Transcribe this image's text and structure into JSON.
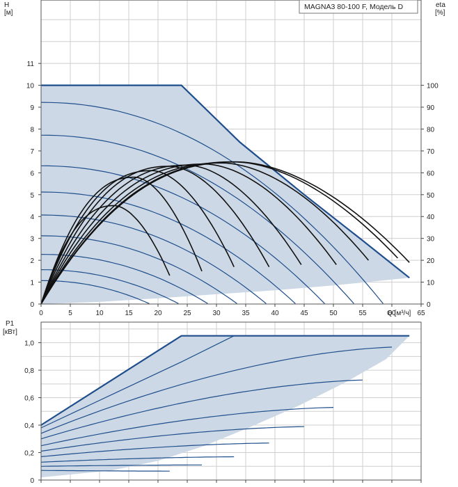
{
  "chart_data": [
    {
      "type": "line",
      "title": "MAGNA3 80-100 F, Модель D",
      "ylabel": "H",
      "ylabel_unit": "[м]",
      "y2label": "eta",
      "y2label_unit": "[%]",
      "xlabel": "Q [м³/ч]",
      "xlim": [
        0,
        65
      ],
      "ylim": [
        0,
        13.9
      ],
      "y2lim": [
        0,
        139
      ],
      "x_ticks": [
        "0",
        "5",
        "10",
        "15",
        "20",
        "25",
        "30",
        "35",
        "40",
        "45",
        "50",
        "55",
        "60",
        "65"
      ],
      "y_ticks": [
        "0",
        "1",
        "2",
        "3",
        "4",
        "5",
        "6",
        "7",
        "8",
        "9",
        "10",
        "11"
      ],
      "y2_ticks": [
        "0",
        "10",
        "20",
        "30",
        "40",
        "50",
        "60",
        "70",
        "80",
        "90",
        "100"
      ],
      "grid": true,
      "colors": {
        "envelope": "#1f4e8c",
        "curve": "#1f4e8c",
        "eta": "#111111",
        "fill": "#ccd8e5"
      },
      "envelope": [
        [
          0,
          10
        ],
        [
          24,
          10
        ],
        [
          34,
          7.4
        ],
        [
          45,
          5.0
        ],
        [
          55,
          2.9
        ],
        [
          63,
          1.2
        ],
        [
          50,
          0.85
        ],
        [
          40,
          0.63
        ],
        [
          30,
          0.45
        ],
        [
          20,
          0.26
        ],
        [
          10,
          0.1
        ],
        [
          0,
          0
        ]
      ],
      "head_curves": [
        {
          "h0": 9.2,
          "qmax": 58.5
        },
        {
          "h0": 7.7,
          "qmax": 53.5
        },
        {
          "h0": 6.3,
          "qmax": 48.5
        },
        {
          "h0": 5.1,
          "qmax": 43.5
        },
        {
          "h0": 4.05,
          "qmax": 38.5
        },
        {
          "h0": 3.1,
          "qmax": 33.5
        },
        {
          "h0": 2.25,
          "qmax": 28.5
        },
        {
          "h0": 1.55,
          "qmax": 23.5
        },
        {
          "h0": 1.05,
          "qmax": 18.5
        }
      ],
      "eta_curves": [
        {
          "q_end": 63,
          "q_peak": 33.5,
          "peak": 65,
          "end": 19
        },
        {
          "q_end": 61,
          "q_peak": 33,
          "peak": 65,
          "end": 21
        },
        {
          "q_end": 56,
          "q_peak": 31,
          "peak": 64.5,
          "end": 20
        },
        {
          "q_end": 50.5,
          "q_peak": 28,
          "peak": 64,
          "end": 18
        },
        {
          "q_end": 44.5,
          "q_peak": 25,
          "peak": 63.5,
          "end": 18
        },
        {
          "q_end": 39,
          "q_peak": 22,
          "peak": 63,
          "end": 17
        },
        {
          "q_end": 33,
          "q_peak": 19,
          "peak": 61,
          "end": 17
        },
        {
          "q_end": 27.5,
          "q_peak": 16,
          "peak": 58,
          "end": 15
        },
        {
          "q_end": 22,
          "q_peak": 12.5,
          "peak": 45,
          "end": 13
        }
      ]
    },
    {
      "type": "line",
      "ylabel": "P1",
      "ylabel_unit": "[кВт]",
      "xlim": [
        0,
        65
      ],
      "ylim": [
        0,
        1.15
      ],
      "y_ticks": [
        "0",
        "0,2",
        "0,4",
        "0,6",
        "0,8",
        "1,0"
      ],
      "grid": true,
      "colors": {
        "envelope": "#1f4e8c",
        "curve": "#1f4e8c",
        "fill": "#ccd8e5"
      },
      "envelope": [
        [
          0,
          0.4
        ],
        [
          24,
          1.05
        ],
        [
          63,
          1.05
        ],
        [
          59,
          0.88
        ],
        [
          52,
          0.71
        ],
        [
          44,
          0.54
        ],
        [
          36,
          0.39
        ],
        [
          28,
          0.25
        ],
        [
          20,
          0.14
        ],
        [
          12,
          0.07
        ],
        [
          0,
          0.02
        ]
      ],
      "power_curves": [
        {
          "p0": 0.34,
          "qmax": 60,
          "pmax": 0.97,
          "qpk": 62
        },
        {
          "p0": 0.3,
          "qmax": 55,
          "pmax": 0.73,
          "qpk": 57
        },
        {
          "p0": 0.25,
          "qmax": 50,
          "pmax": 0.53,
          "qpk": 52
        },
        {
          "p0": 0.21,
          "qmax": 45,
          "pmax": 0.39,
          "qpk": 47
        },
        {
          "p0": 0.17,
          "qmax": 39,
          "pmax": 0.27,
          "qpk": 41
        },
        {
          "p0": 0.13,
          "qmax": 33,
          "pmax": 0.17,
          "qpk": 35
        },
        {
          "p0": 0.1,
          "qmax": 27.5,
          "pmax": 0.11,
          "qpk": 29
        },
        {
          "p0": 0.07,
          "qmax": 22,
          "pmax": 0.065,
          "qpk": 23
        }
      ]
    }
  ]
}
